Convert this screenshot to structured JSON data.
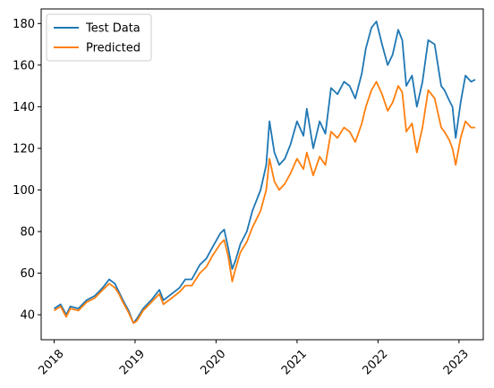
{
  "chart_data": {
    "type": "line",
    "title": "",
    "xlabel": "",
    "ylabel": "",
    "xlim": [
      2017.84,
      2023.3
    ],
    "ylim": [
      28,
      187
    ],
    "x_ticks": [
      2018,
      2019,
      2020,
      2021,
      2022,
      2023
    ],
    "x_tick_labels": [
      "2018",
      "2019",
      "2020",
      "2021",
      "2022",
      "2023"
    ],
    "y_ticks": [
      40,
      60,
      80,
      100,
      120,
      140,
      160,
      180
    ],
    "y_tick_labels": [
      "40",
      "60",
      "80",
      "100",
      "120",
      "140",
      "160",
      "180"
    ],
    "grid": false,
    "legend_position": "upper-left",
    "series": [
      {
        "name": "Test Data",
        "color": "#1f77b4",
        "x": [
          2018.0,
          2018.08,
          2018.15,
          2018.2,
          2018.3,
          2018.4,
          2018.5,
          2018.6,
          2018.68,
          2018.75,
          2018.8,
          2018.85,
          2018.92,
          2018.98,
          2019.02,
          2019.1,
          2019.2,
          2019.3,
          2019.35,
          2019.45,
          2019.55,
          2019.62,
          2019.7,
          2019.8,
          2019.88,
          2019.95,
          2020.05,
          2020.1,
          2020.15,
          2020.2,
          2020.24,
          2020.3,
          2020.38,
          2020.45,
          2020.55,
          2020.62,
          2020.66,
          2020.72,
          2020.78,
          2020.85,
          2020.92,
          2021.0,
          2021.08,
          2021.12,
          2021.2,
          2021.28,
          2021.35,
          2021.42,
          2021.5,
          2021.58,
          2021.65,
          2021.72,
          2021.8,
          2021.85,
          2021.92,
          2021.98,
          2022.05,
          2022.12,
          2022.18,
          2022.25,
          2022.3,
          2022.35,
          2022.42,
          2022.48,
          2022.55,
          2022.62,
          2022.7,
          2022.78,
          2022.82,
          2022.88,
          2022.92,
          2022.96,
          2023.02,
          2023.08,
          2023.15,
          2023.2
        ],
        "y": [
          43,
          45,
          40,
          44,
          43,
          47,
          49,
          53,
          57,
          55,
          51,
          47,
          42,
          36,
          38,
          43,
          47,
          52,
          47,
          50,
          53,
          57,
          57,
          64,
          67,
          72,
          79,
          81,
          72,
          62,
          66,
          74,
          80,
          90,
          100,
          112,
          133,
          118,
          112,
          115,
          122,
          133,
          126,
          139,
          120,
          133,
          127,
          149,
          146,
          152,
          150,
          144,
          156,
          168,
          178,
          181,
          170,
          160,
          165,
          177,
          172,
          150,
          155,
          140,
          152,
          172,
          170,
          150,
          148,
          143,
          140,
          125,
          142,
          155,
          152,
          153
        ]
      },
      {
        "name": "Predicted",
        "color": "#ff7f0e",
        "x": [
          2018.0,
          2018.08,
          2018.15,
          2018.2,
          2018.3,
          2018.4,
          2018.5,
          2018.6,
          2018.68,
          2018.75,
          2018.8,
          2018.85,
          2018.92,
          2018.98,
          2019.02,
          2019.1,
          2019.2,
          2019.3,
          2019.35,
          2019.45,
          2019.55,
          2019.62,
          2019.7,
          2019.8,
          2019.88,
          2019.95,
          2020.05,
          2020.1,
          2020.15,
          2020.2,
          2020.24,
          2020.3,
          2020.38,
          2020.45,
          2020.55,
          2020.62,
          2020.66,
          2020.72,
          2020.78,
          2020.85,
          2020.92,
          2021.0,
          2021.08,
          2021.12,
          2021.2,
          2021.28,
          2021.35,
          2021.42,
          2021.5,
          2021.58,
          2021.65,
          2021.72,
          2021.8,
          2021.85,
          2021.92,
          2021.98,
          2022.05,
          2022.12,
          2022.18,
          2022.25,
          2022.3,
          2022.35,
          2022.42,
          2022.48,
          2022.55,
          2022.62,
          2022.7,
          2022.78,
          2022.82,
          2022.88,
          2022.92,
          2022.96,
          2023.02,
          2023.08,
          2023.15,
          2023.2
        ],
        "y": [
          42,
          44,
          39,
          43,
          42,
          46,
          48,
          52,
          55,
          53,
          50,
          46,
          41,
          36,
          37,
          42,
          46,
          50,
          45,
          48,
          51,
          54,
          54,
          60,
          63,
          68,
          74,
          76,
          68,
          56,
          62,
          70,
          75,
          82,
          90,
          100,
          115,
          104,
          100,
          103,
          108,
          115,
          110,
          118,
          107,
          116,
          112,
          128,
          125,
          130,
          128,
          123,
          132,
          140,
          148,
          152,
          146,
          138,
          142,
          150,
          147,
          128,
          132,
          118,
          130,
          148,
          144,
          130,
          128,
          124,
          120,
          112,
          125,
          133,
          130,
          130
        ]
      }
    ]
  }
}
